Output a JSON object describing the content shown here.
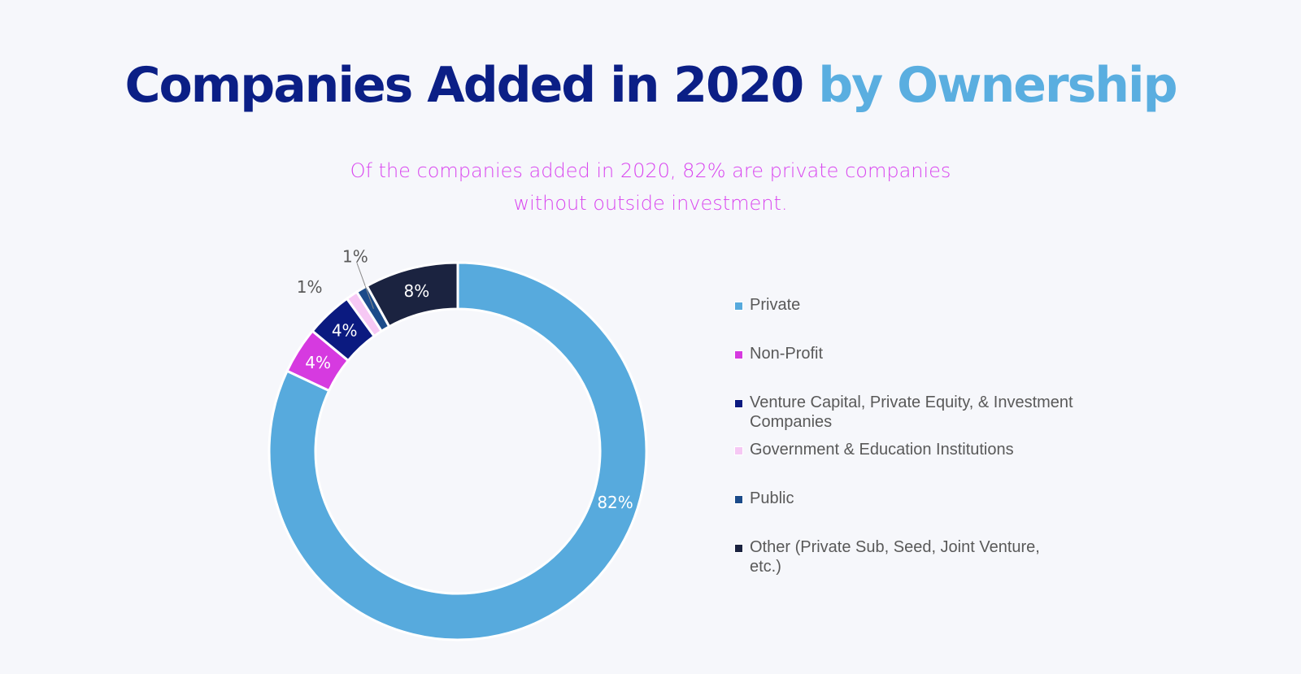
{
  "title": {
    "part1": "Companies Added in 2020",
    "part2": "by Ownership"
  },
  "subtitle": {
    "line1": "Of the companies added in 2020, 82% are private companies",
    "line2": "without outside investment."
  },
  "chart_data": {
    "type": "pie",
    "variant": "donut",
    "title": "Companies Added in 2020 by Ownership",
    "categories": [
      "Private",
      "Non-Profit",
      "Venture Capital, Private Equity, & Investment Companies",
      "Government & Education Institutions",
      "Public",
      "Other (Private Sub, Seed, Joint Venture, etc.)"
    ],
    "values": [
      82,
      4,
      4,
      1,
      1,
      8
    ],
    "labels": [
      "82%",
      "4%",
      "4%",
      "1%",
      "1%",
      "8%"
    ],
    "colors": [
      "#57aadd",
      "#d63ae0",
      "#0b1a80",
      "#f6c8f4",
      "#1b4b8a",
      "#1b2340"
    ],
    "label_colors": [
      "#ffffff",
      "#ffffff",
      "#ffffff",
      "#595959",
      "#595959",
      "#ffffff"
    ],
    "legend_position": "right",
    "start": "top",
    "direction": "clockwise"
  }
}
